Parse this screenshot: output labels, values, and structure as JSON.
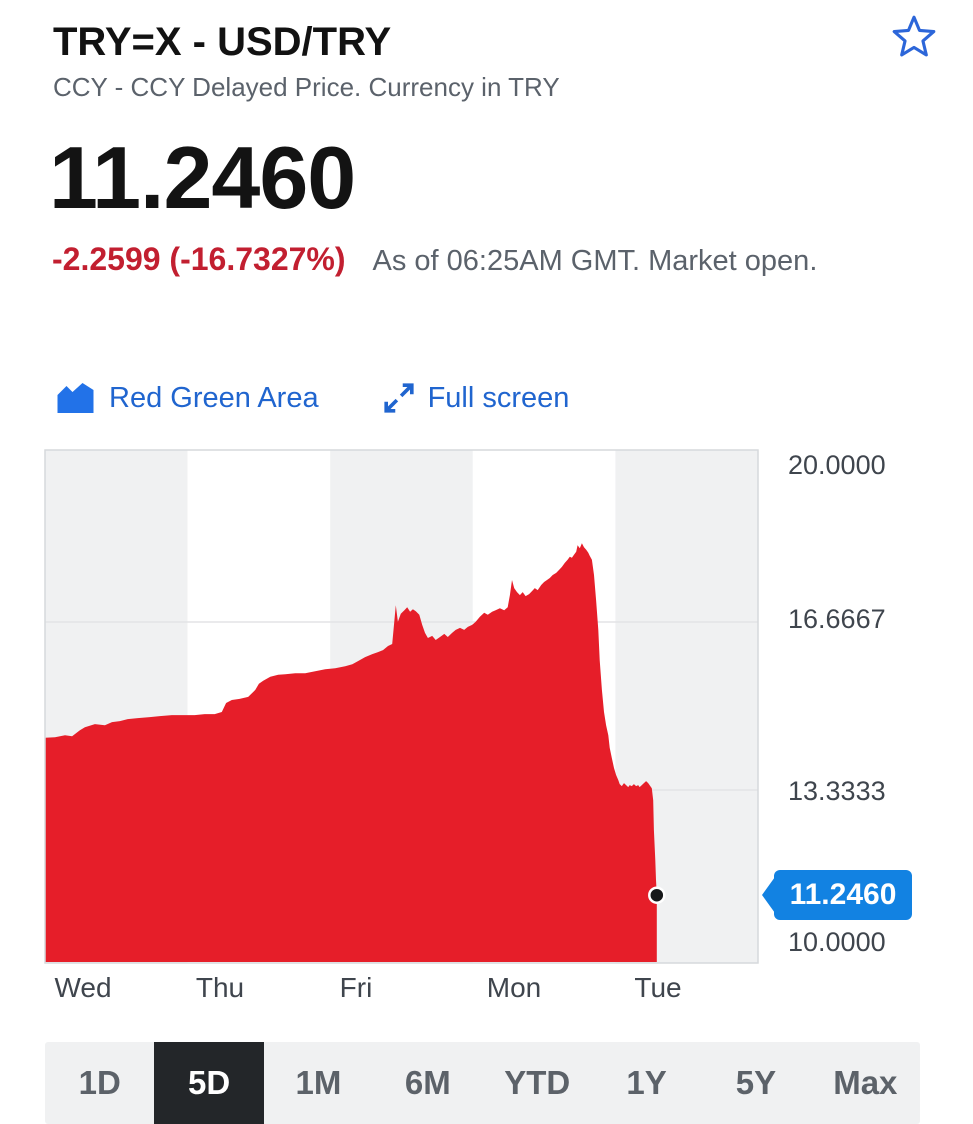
{
  "header": {
    "symbol_title": "TRY=X - USD/TRY",
    "subtitle": "CCY - CCY Delayed Price. Currency in TRY",
    "price": "11.2460",
    "change": "-2.2599 (-16.7327%)",
    "as_of": "As of 06:25AM GMT. Market open."
  },
  "toolbar": {
    "chart_type_label": "Red Green Area",
    "fullscreen_label": "Full screen"
  },
  "range_tabs": {
    "items": [
      {
        "label": "1D",
        "selected": false
      },
      {
        "label": "5D",
        "selected": true
      },
      {
        "label": "1M",
        "selected": false
      },
      {
        "label": "6M",
        "selected": false
      },
      {
        "label": "YTD",
        "selected": false
      },
      {
        "label": "1Y",
        "selected": false
      },
      {
        "label": "5Y",
        "selected": false
      },
      {
        "label": "Max",
        "selected": false
      }
    ]
  },
  "colors": {
    "link_blue": "#2065cf",
    "icon_blue": "#2272e8",
    "star_blue": "#2c66d9",
    "tag_blue": "#1282e2",
    "area_red": "#e61e29",
    "change_red": "#c21f30",
    "text_dark": "#131313",
    "text_gray": "#5b626b",
    "axis_text": "#3f454d",
    "stripe_gray": "#f0f1f2",
    "stripe_white": "#ffffff",
    "gridline": "#e3e4e6",
    "plot_border": "#d6d9dc",
    "tab_bar_bg": "#f0f1f2",
    "tab_selected_bg": "#232629"
  },
  "chart_data": {
    "type": "area",
    "title": "USD/TRY 5-day intraday price",
    "x_labels": [
      "Wed",
      "Thu",
      "Fri",
      "Mon",
      "Tue"
    ],
    "y_axis_labels": [
      "20.0000",
      "16.6667",
      "13.3333",
      "10.0000"
    ],
    "current_price_label": "11.2460",
    "last_value": 11.246,
    "ylim": [
      10,
      20
    ],
    "axis": {
      "vmin": 10,
      "vmax": 20,
      "gridlines": [
        16.6667,
        13.3333
      ]
    },
    "legend": "none",
    "series": [
      {
        "name": "USD/TRY",
        "points": [
          [
            0.0,
            14.37
          ],
          [
            0.014,
            14.38
          ],
          [
            0.028,
            14.42
          ],
          [
            0.038,
            14.4
          ],
          [
            0.049,
            14.52
          ],
          [
            0.056,
            14.58
          ],
          [
            0.07,
            14.64
          ],
          [
            0.084,
            14.62
          ],
          [
            0.094,
            14.68
          ],
          [
            0.105,
            14.7
          ],
          [
            0.116,
            14.74
          ],
          [
            0.13,
            14.76
          ],
          [
            0.147,
            14.78
          ],
          [
            0.161,
            14.8
          ],
          [
            0.178,
            14.82
          ],
          [
            0.196,
            14.82
          ],
          [
            0.21,
            14.82
          ],
          [
            0.224,
            14.84
          ],
          [
            0.238,
            14.84
          ],
          [
            0.248,
            14.88
          ],
          [
            0.254,
            15.06
          ],
          [
            0.262,
            15.12
          ],
          [
            0.273,
            15.14
          ],
          [
            0.285,
            15.18
          ],
          [
            0.295,
            15.32
          ],
          [
            0.3,
            15.44
          ],
          [
            0.306,
            15.5
          ],
          [
            0.316,
            15.58
          ],
          [
            0.327,
            15.62
          ],
          [
            0.337,
            15.63
          ],
          [
            0.351,
            15.65
          ],
          [
            0.365,
            15.65
          ],
          [
            0.379,
            15.69
          ],
          [
            0.393,
            15.73
          ],
          [
            0.407,
            15.75
          ],
          [
            0.421,
            15.79
          ],
          [
            0.431,
            15.83
          ],
          [
            0.439,
            15.89
          ],
          [
            0.449,
            15.97
          ],
          [
            0.459,
            16.03
          ],
          [
            0.467,
            16.07
          ],
          [
            0.474,
            16.11
          ],
          [
            0.481,
            16.19
          ],
          [
            0.487,
            16.23
          ],
          [
            0.489,
            16.55
          ],
          [
            0.492,
            17.0
          ],
          [
            0.495,
            16.67
          ],
          [
            0.499,
            16.83
          ],
          [
            0.504,
            16.9
          ],
          [
            0.508,
            16.96
          ],
          [
            0.512,
            16.87
          ],
          [
            0.516,
            16.92
          ],
          [
            0.52,
            16.88
          ],
          [
            0.525,
            16.81
          ],
          [
            0.529,
            16.61
          ],
          [
            0.533,
            16.45
          ],
          [
            0.537,
            16.35
          ],
          [
            0.543,
            16.39
          ],
          [
            0.548,
            16.31
          ],
          [
            0.554,
            16.37
          ],
          [
            0.56,
            16.43
          ],
          [
            0.565,
            16.37
          ],
          [
            0.571,
            16.45
          ],
          [
            0.576,
            16.51
          ],
          [
            0.582,
            16.55
          ],
          [
            0.588,
            16.51
          ],
          [
            0.593,
            16.57
          ],
          [
            0.599,
            16.61
          ],
          [
            0.604,
            16.67
          ],
          [
            0.61,
            16.77
          ],
          [
            0.616,
            16.85
          ],
          [
            0.621,
            16.81
          ],
          [
            0.627,
            16.87
          ],
          [
            0.632,
            16.9
          ],
          [
            0.638,
            16.94
          ],
          [
            0.644,
            16.9
          ],
          [
            0.649,
            16.96
          ],
          [
            0.652,
            17.2
          ],
          [
            0.655,
            17.5
          ],
          [
            0.658,
            17.34
          ],
          [
            0.662,
            17.26
          ],
          [
            0.666,
            17.2
          ],
          [
            0.67,
            17.26
          ],
          [
            0.674,
            17.18
          ],
          [
            0.679,
            17.22
          ],
          [
            0.683,
            17.28
          ],
          [
            0.687,
            17.34
          ],
          [
            0.691,
            17.3
          ],
          [
            0.696,
            17.4
          ],
          [
            0.7,
            17.46
          ],
          [
            0.704,
            17.5
          ],
          [
            0.708,
            17.54
          ],
          [
            0.712,
            17.6
          ],
          [
            0.717,
            17.64
          ],
          [
            0.721,
            17.7
          ],
          [
            0.725,
            17.76
          ],
          [
            0.729,
            17.84
          ],
          [
            0.733,
            17.9
          ],
          [
            0.736,
            17.96
          ],
          [
            0.739,
            17.94
          ],
          [
            0.742,
            18.0
          ],
          [
            0.745,
            18.06
          ],
          [
            0.747,
            18.19
          ],
          [
            0.75,
            18.13
          ],
          [
            0.753,
            18.23
          ],
          [
            0.756,
            18.15
          ],
          [
            0.759,
            18.1
          ],
          [
            0.762,
            18.04
          ],
          [
            0.764,
            17.98
          ],
          [
            0.767,
            17.9
          ],
          [
            0.77,
            17.6
          ],
          [
            0.773,
            17.1
          ],
          [
            0.776,
            16.51
          ],
          [
            0.778,
            15.91
          ],
          [
            0.781,
            15.32
          ],
          [
            0.784,
            14.88
          ],
          [
            0.787,
            14.62
          ],
          [
            0.79,
            14.42
          ],
          [
            0.792,
            14.17
          ],
          [
            0.795,
            13.97
          ],
          [
            0.798,
            13.77
          ],
          [
            0.801,
            13.63
          ],
          [
            0.804,
            13.53
          ],
          [
            0.806,
            13.45
          ],
          [
            0.809,
            13.41
          ],
          [
            0.812,
            13.47
          ],
          [
            0.815,
            13.43
          ],
          [
            0.818,
            13.39
          ],
          [
            0.82,
            13.43
          ],
          [
            0.823,
            13.41
          ],
          [
            0.826,
            13.45
          ],
          [
            0.829,
            13.41
          ],
          [
            0.832,
            13.43
          ],
          [
            0.834,
            13.39
          ],
          [
            0.837,
            13.43
          ],
          [
            0.84,
            13.47
          ],
          [
            0.843,
            13.51
          ],
          [
            0.846,
            13.47
          ],
          [
            0.848,
            13.43
          ],
          [
            0.851,
            13.37
          ],
          [
            0.853,
            13.13
          ],
          [
            0.854,
            12.54
          ],
          [
            0.856,
            11.94
          ],
          [
            0.857,
            11.55
          ],
          [
            0.858,
            11.246
          ]
        ]
      }
    ]
  }
}
